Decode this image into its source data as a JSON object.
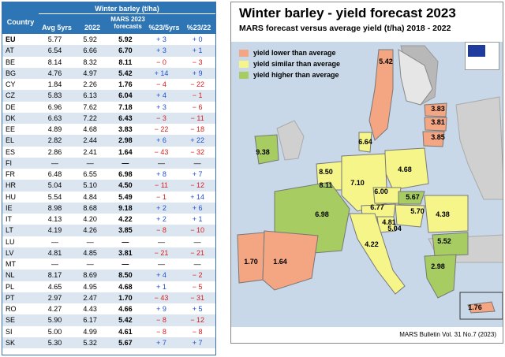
{
  "table": {
    "header_top": "Winter barley (t/ha)",
    "col_country": "Country",
    "col_avg": "Avg 5yrs",
    "col_2022": "2022",
    "col_mars": "MARS 2023 forecasts",
    "col_d5": "%23/5yrs",
    "col_d22": "%23/22",
    "rows": [
      [
        "EU",
        "5.77",
        "5.92",
        "5.92",
        "+ 3",
        "+ 0"
      ],
      [
        "AT",
        "6.54",
        "6.66",
        "6.70",
        "+ 3",
        "+ 1"
      ],
      [
        "BE",
        "8.14",
        "8.32",
        "8.11",
        "− 0",
        "− 3"
      ],
      [
        "BG",
        "4.76",
        "4.97",
        "5.42",
        "+ 14",
        "+ 9"
      ],
      [
        "CY",
        "1.84",
        "2.26",
        "1.76",
        "− 4",
        "− 22"
      ],
      [
        "CZ",
        "5.83",
        "6.13",
        "6.04",
        "+ 4",
        "− 1"
      ],
      [
        "DE",
        "6.96",
        "7.62",
        "7.18",
        "+ 3",
        "− 6"
      ],
      [
        "DK",
        "6.63",
        "7.22",
        "6.43",
        "− 3",
        "− 11"
      ],
      [
        "EE",
        "4.89",
        "4.68",
        "3.83",
        "− 22",
        "− 18"
      ],
      [
        "EL",
        "2.82",
        "2.44",
        "2.98",
        "+ 6",
        "+ 22"
      ],
      [
        "ES",
        "2.86",
        "2.41",
        "1.64",
        "− 43",
        "− 32"
      ],
      [
        "FI",
        "—",
        "—",
        "—",
        "—",
        "—"
      ],
      [
        "FR",
        "6.48",
        "6.55",
        "6.98",
        "+ 8",
        "+ 7"
      ],
      [
        "HR",
        "5.04",
        "5.10",
        "4.50",
        "− 11",
        "− 12"
      ],
      [
        "HU",
        "5.54",
        "4.84",
        "5.49",
        "− 1",
        "+ 14"
      ],
      [
        "IE",
        "8.98",
        "8.68",
        "9.18",
        "+ 2",
        "+ 6"
      ],
      [
        "IT",
        "4.13",
        "4.20",
        "4.22",
        "+ 2",
        "+ 1"
      ],
      [
        "LT",
        "4.19",
        "4.26",
        "3.85",
        "− 8",
        "− 10"
      ],
      [
        "LU",
        "—",
        "—",
        "—",
        "—",
        "—"
      ],
      [
        "LV",
        "4.81",
        "4.85",
        "3.81",
        "− 21",
        "− 21"
      ],
      [
        "MT",
        "—",
        "—",
        "—",
        "—",
        "—"
      ],
      [
        "NL",
        "8.17",
        "8.69",
        "8.50",
        "+ 4",
        "− 2"
      ],
      [
        "PL",
        "4.65",
        "4.95",
        "4.68",
        "+ 1",
        "− 5"
      ],
      [
        "PT",
        "2.97",
        "2.47",
        "1.70",
        "− 43",
        "− 31"
      ],
      [
        "RO",
        "4.27",
        "4.43",
        "4.66",
        "+ 9",
        "+ 5"
      ],
      [
        "SE",
        "5.90",
        "6.17",
        "5.42",
        "− 8",
        "− 12"
      ],
      [
        "SI",
        "5.00",
        "4.99",
        "4.61",
        "− 8",
        "− 8"
      ],
      [
        "SK",
        "5.30",
        "5.32",
        "5.67",
        "+ 7",
        "+ 7"
      ]
    ]
  },
  "map": {
    "title": "Winter barley - yield forecast 2023",
    "subtitle": "MARS forecast versus average yield (t/ha) 2018 - 2022",
    "legend": [
      {
        "label": "yield lower than average",
        "color": "#f4a582"
      },
      {
        "label": "yield similar than average",
        "color": "#f5f58a"
      },
      {
        "label": "yield higher than average",
        "color": "#a6cc62"
      }
    ],
    "bulletin": "MARS Bulletin Vol. 31 No.7 (2023)",
    "values": [
      "5.42",
      "3.83",
      "3.81",
      "3.85",
      "6.64",
      "9.38",
      "4.68",
      "8.50",
      "8.11",
      "7.10",
      "6.00",
      "5.67",
      "6.77",
      "5.70",
      "4.38",
      "6.98",
      "4.81",
      "5.04",
      "4.22",
      "5.52",
      "1.70",
      "1.64",
      "2.98",
      "1.76"
    ]
  },
  "chart_data": {
    "type": "table",
    "title": "Winter barley (t/ha)",
    "columns": [
      "Country",
      "Avg 5yrs",
      "2022",
      "MARS 2023 forecasts",
      "%23/5yrs",
      "%23/22"
    ],
    "rows_ref": "table.rows",
    "map_title": "Winter barley - yield forecast 2023"
  }
}
